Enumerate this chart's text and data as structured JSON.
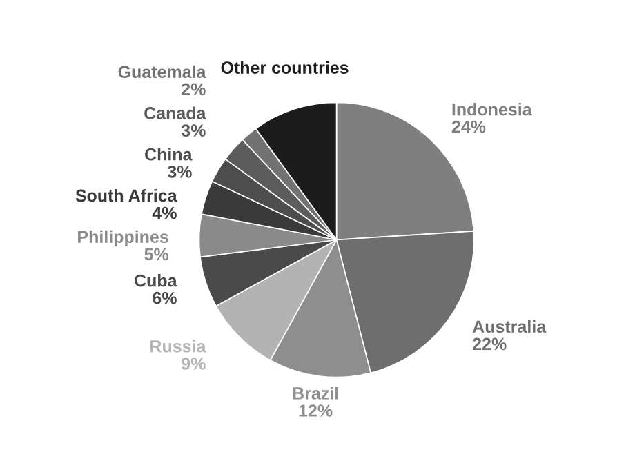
{
  "chart_data": {
    "type": "pie",
    "categories": [
      "Indonesia",
      "Australia",
      "Brazil",
      "Russia",
      "Cuba",
      "Philippines",
      "South Africa",
      "China",
      "Canada",
      "Guatemala",
      "Other countries"
    ],
    "values": [
      24,
      22,
      12,
      9,
      6,
      5,
      4,
      3,
      3,
      2,
      10
    ],
    "value_labels": [
      "24%",
      "22%",
      "12%",
      "9%",
      "6%",
      "5%",
      "4%",
      "3%",
      "3%",
      "2%",
      null
    ],
    "colors": [
      "#7f7f7f",
      "#6e6e6e",
      "#8e8e8e",
      "#b3b3b3",
      "#4a4a4a",
      "#8a8a8a",
      "#3a3a3a",
      "#4d4d4d",
      "#5c5c5c",
      "#727272",
      "#1c1c1c"
    ]
  }
}
